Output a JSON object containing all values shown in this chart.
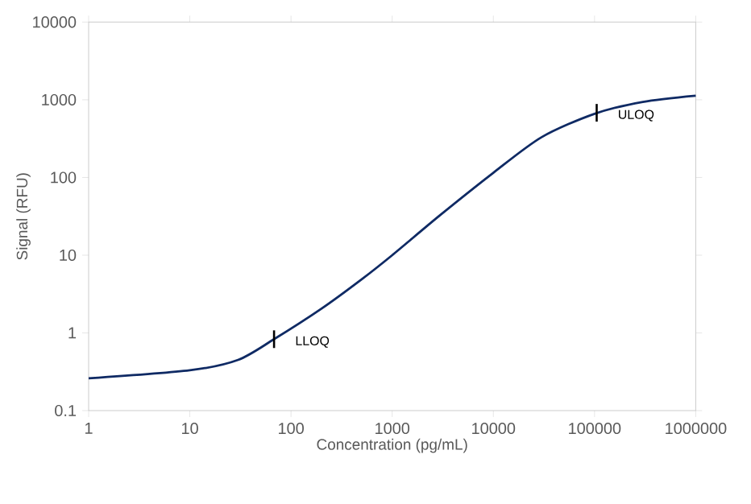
{
  "chart_data": {
    "type": "line",
    "xlabel": "Concentration (pg/mL)",
    "ylabel": "Signal (RFU)",
    "log": "xy",
    "grid": false,
    "x": [
      1,
      10,
      30,
      68,
      200,
      500,
      1000,
      3000,
      10000,
      30000,
      100000,
      300000,
      1000000
    ],
    "series": [
      {
        "color": "#0f2a64",
        "values": [
          0.26,
          0.33,
          0.45,
          0.83,
          2.05,
          4.9,
          10,
          33,
          115,
          330,
          660,
          940,
          1130
        ]
      }
    ],
    "xlim": [
      1,
      1000000
    ],
    "ylim": [
      0.1,
      10000
    ],
    "xticks": [
      1,
      10,
      100,
      1000,
      10000,
      100000,
      1000000
    ],
    "yticks": [
      0.1,
      1,
      10,
      100,
      1000,
      10000
    ],
    "annotations": [
      {
        "text": "LLOQ",
        "x": 68,
        "y": 0.83
      },
      {
        "text": "ULOQ",
        "x": 105000,
        "y": 680
      }
    ]
  }
}
